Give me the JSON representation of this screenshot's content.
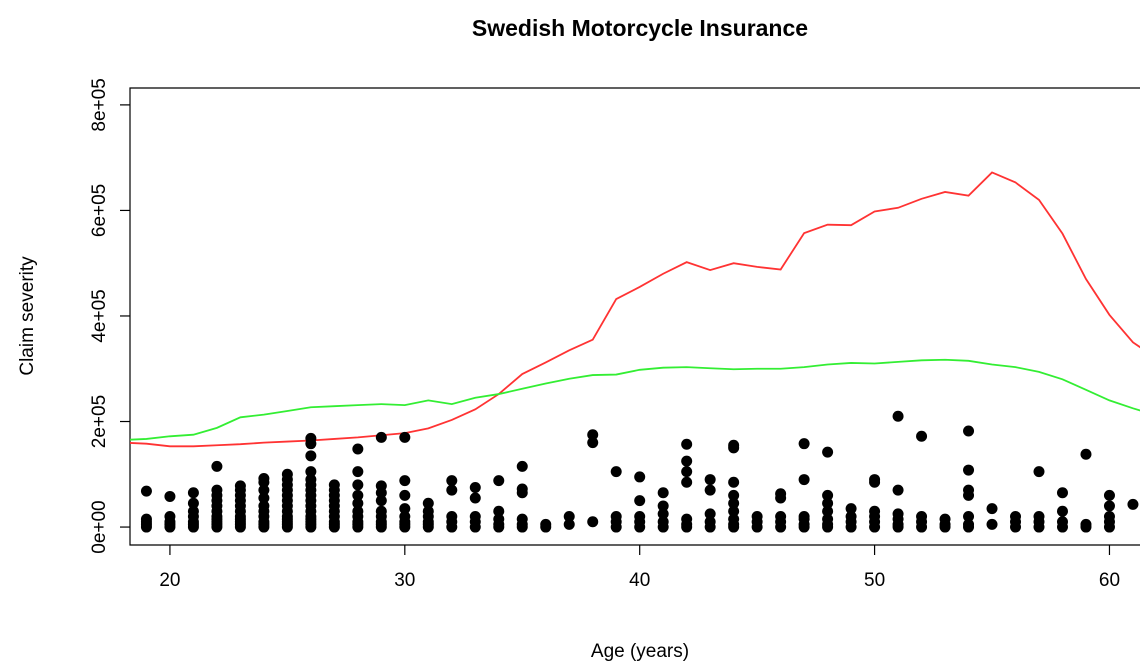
{
  "chart_data": {
    "type": "scatter",
    "title": "Swedish Motorcycle Insurance",
    "x_label": "Age (years)",
    "y_label": "Claim severity",
    "xlim": [
      18.3,
      61.3
    ],
    "ylim": [
      -34000,
      832000
    ],
    "xticks": [
      20,
      30,
      40,
      50,
      60
    ],
    "yticks": [
      {
        "value": 0,
        "label": "0e+00"
      },
      {
        "value": 200000,
        "label": "2e+05"
      },
      {
        "value": 400000,
        "label": "4e+05"
      },
      {
        "value": 600000,
        "label": "6e+05"
      },
      {
        "value": 800000,
        "label": "8e+05"
      }
    ],
    "points": {
      "color": "#000000",
      "x": [
        19,
        19,
        19,
        19,
        19,
        20,
        20,
        20,
        20,
        20,
        21,
        21,
        21,
        21,
        21,
        21,
        21,
        22,
        22,
        22,
        22,
        22,
        22,
        22,
        22,
        22,
        22,
        22,
        23,
        23,
        23,
        23,
        23,
        23,
        23,
        23,
        23,
        23,
        23,
        24,
        24,
        24,
        24,
        24,
        24,
        24,
        24,
        24,
        24,
        25,
        25,
        25,
        25,
        25,
        25,
        25,
        25,
        25,
        25,
        25,
        25,
        25,
        26,
        26,
        26,
        26,
        26,
        26,
        26,
        26,
        26,
        26,
        26,
        26,
        26,
        26,
        26,
        26,
        27,
        27,
        27,
        27,
        27,
        27,
        27,
        27,
        27,
        27,
        28,
        28,
        28,
        28,
        28,
        28,
        28,
        28,
        28,
        28,
        29,
        29,
        29,
        29,
        29,
        29,
        29,
        29,
        29,
        30,
        30,
        30,
        30,
        30,
        30,
        30,
        30,
        31,
        31,
        31,
        31,
        31,
        31,
        32,
        32,
        32,
        32,
        32,
        33,
        33,
        33,
        33,
        33,
        34,
        34,
        34,
        34,
        34,
        35,
        35,
        35,
        35,
        35,
        35,
        36,
        36,
        37,
        37,
        38,
        38,
        38,
        39,
        39,
        39,
        39,
        40,
        40,
        40,
        40,
        40,
        41,
        41,
        41,
        41,
        41,
        42,
        42,
        42,
        42,
        42,
        42,
        42,
        43,
        43,
        43,
        43,
        43,
        44,
        44,
        44,
        44,
        44,
        44,
        44,
        44,
        44,
        45,
        45,
        45,
        46,
        46,
        46,
        46,
        46,
        47,
        47,
        47,
        47,
        47,
        47,
        48,
        48,
        48,
        48,
        48,
        48,
        48,
        49,
        49,
        49,
        49,
        50,
        50,
        50,
        50,
        50,
        50,
        51,
        51,
        51,
        51,
        51,
        51,
        52,
        52,
        52,
        52,
        53,
        53,
        53,
        54,
        54,
        54,
        54,
        54,
        54,
        54,
        55,
        55,
        56,
        56,
        56,
        57,
        57,
        57,
        57,
        58,
        58,
        58,
        58,
        59,
        59,
        59,
        60,
        60,
        60,
        60,
        60,
        61
      ],
      "y": [
        0,
        5000,
        10000,
        15000,
        68000,
        0,
        5000,
        10000,
        20000,
        58000,
        0,
        5000,
        10000,
        20000,
        30000,
        45000,
        65000,
        0,
        5000,
        10000,
        15000,
        20000,
        30000,
        40000,
        50000,
        60000,
        70000,
        115000,
        0,
        5000,
        10000,
        15000,
        20000,
        30000,
        40000,
        50000,
        60000,
        70000,
        78000,
        0,
        5000,
        10000,
        20000,
        30000,
        40000,
        55000,
        70000,
        85000,
        92000,
        0,
        5000,
        10000,
        15000,
        20000,
        30000,
        40000,
        50000,
        60000,
        70000,
        80000,
        90000,
        100000,
        0,
        5000,
        10000,
        15000,
        20000,
        30000,
        40000,
        50000,
        60000,
        70000,
        80000,
        90000,
        105000,
        135000,
        158000,
        168000,
        0,
        5000,
        10000,
        20000,
        30000,
        40000,
        50000,
        60000,
        70000,
        80000,
        0,
        5000,
        10000,
        20000,
        30000,
        45000,
        60000,
        80000,
        105000,
        148000,
        0,
        5000,
        10000,
        20000,
        30000,
        50000,
        65000,
        78000,
        170000,
        0,
        5000,
        10000,
        20000,
        35000,
        60000,
        88000,
        170000,
        0,
        5000,
        10000,
        20000,
        30000,
        45000,
        0,
        10000,
        20000,
        70000,
        88000,
        0,
        10000,
        20000,
        55000,
        75000,
        0,
        5000,
        15000,
        30000,
        88000,
        0,
        5000,
        15000,
        65000,
        72000,
        115000,
        0,
        5000,
        5000,
        20000,
        10000,
        160000,
        175000,
        0,
        10000,
        20000,
        105000,
        0,
        10000,
        20000,
        50000,
        95000,
        0,
        10000,
        25000,
        40000,
        65000,
        0,
        5000,
        15000,
        85000,
        105000,
        125000,
        157000,
        0,
        10000,
        25000,
        70000,
        90000,
        0,
        5000,
        15000,
        30000,
        45000,
        60000,
        85000,
        150000,
        155000,
        0,
        10000,
        20000,
        0,
        10000,
        20000,
        55000,
        63000,
        0,
        5000,
        15000,
        20000,
        90000,
        158000,
        0,
        5000,
        15000,
        30000,
        45000,
        60000,
        142000,
        0,
        10000,
        20000,
        35000,
        0,
        10000,
        20000,
        30000,
        85000,
        90000,
        0,
        5000,
        15000,
        25000,
        70000,
        210000,
        0,
        10000,
        20000,
        172000,
        0,
        5000,
        15000,
        0,
        5000,
        20000,
        60000,
        70000,
        108000,
        182000,
        5000,
        35000,
        0,
        10000,
        20000,
        0,
        10000,
        20000,
        105000,
        0,
        10000,
        30000,
        65000,
        0,
        5000,
        138000,
        0,
        10000,
        20000,
        40000,
        60000,
        43000
      ]
    },
    "series": [
      {
        "color": "#ff3333",
        "x": [
          18,
          19,
          20,
          21,
          22,
          23,
          24,
          25,
          26,
          27,
          28,
          29,
          30,
          31,
          32,
          33,
          34,
          35,
          36,
          37,
          38,
          39,
          40,
          41,
          42,
          43,
          44,
          45,
          46,
          47,
          48,
          49,
          50,
          51,
          52,
          53,
          54,
          55,
          56,
          57,
          58,
          59,
          60,
          61,
          62
        ],
        "values": [
          160000,
          158000,
          153000,
          153000,
          155000,
          157000,
          160000,
          162000,
          164000,
          167000,
          170000,
          174000,
          178000,
          187000,
          203000,
          223000,
          252000,
          290000,
          312000,
          335000,
          355000,
          432000,
          455000,
          480000,
          502000,
          487000,
          500000,
          493000,
          488000,
          557000,
          573000,
          572000,
          598000,
          605000,
          622000,
          635000,
          628000,
          672000,
          653000,
          620000,
          556000,
          470000,
          402000,
          350000,
          320000
        ]
      },
      {
        "color": "#33ee33",
        "x": [
          18,
          19,
          20,
          21,
          22,
          23,
          24,
          25,
          26,
          27,
          28,
          29,
          30,
          31,
          32,
          33,
          34,
          35,
          36,
          37,
          38,
          39,
          40,
          41,
          42,
          43,
          44,
          45,
          46,
          47,
          48,
          49,
          50,
          51,
          52,
          53,
          54,
          55,
          56,
          57,
          58,
          59,
          60,
          61,
          62
        ],
        "values": [
          165000,
          167000,
          172000,
          175000,
          188000,
          208000,
          213000,
          220000,
          227000,
          229000,
          231000,
          233000,
          231000,
          240000,
          233000,
          245000,
          252000,
          262000,
          272000,
          281000,
          288000,
          289000,
          298000,
          302000,
          303000,
          301000,
          299000,
          300000,
          300000,
          303000,
          308000,
          311000,
          310000,
          313000,
          316000,
          317000,
          315000,
          308000,
          303000,
          294000,
          280000,
          260000,
          240000,
          225000,
          212000
        ]
      }
    ]
  }
}
